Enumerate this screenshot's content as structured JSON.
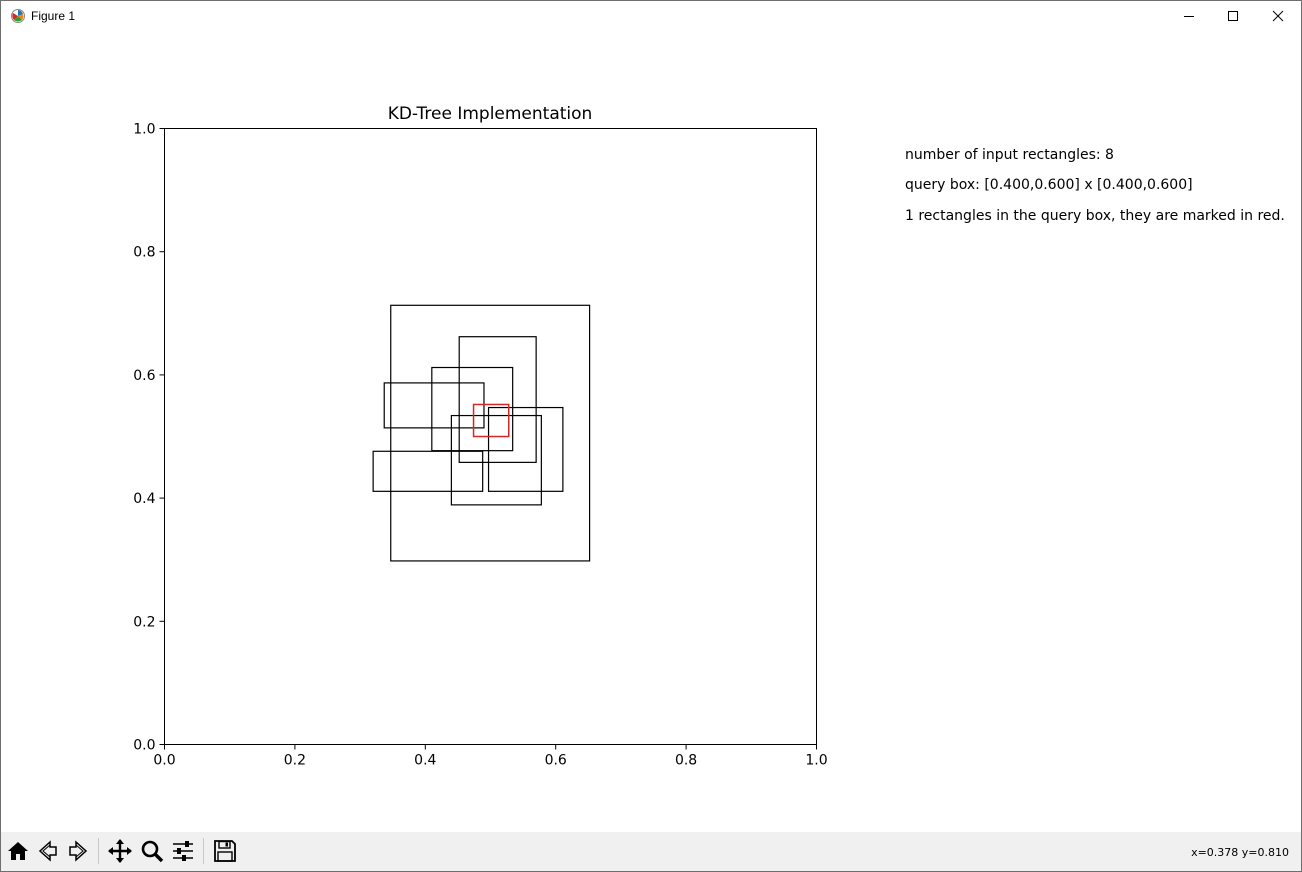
{
  "window": {
    "title": "Figure 1"
  },
  "figure": {
    "info_lines": [
      "number of input rectangles: 8",
      "query box: [0.400,0.600]  x [0.400,0.600]",
      "1 rectangles in the query box, they are marked in red."
    ]
  },
  "chart_data": {
    "type": "rectangles",
    "title": "KD-Tree Implementation",
    "xlabel": "",
    "ylabel": "",
    "xlim": [
      0.0,
      1.0
    ],
    "ylim": [
      0.0,
      1.0
    ],
    "xticks": [
      "0.0",
      "0.2",
      "0.4",
      "0.6",
      "0.8",
      "1.0"
    ],
    "yticks": [
      "0.0",
      "0.2",
      "0.4",
      "0.6",
      "0.8",
      "1.0"
    ],
    "grid": false,
    "rectangles": [
      {
        "x0": 0.347,
        "x1": 0.652,
        "y0": 0.298,
        "y1": 0.713,
        "color": "#000000"
      },
      {
        "x0": 0.452,
        "x1": 0.57,
        "y0": 0.458,
        "y1": 0.662,
        "color": "#000000"
      },
      {
        "x0": 0.41,
        "x1": 0.534,
        "y0": 0.477,
        "y1": 0.612,
        "color": "#000000"
      },
      {
        "x0": 0.337,
        "x1": 0.49,
        "y0": 0.514,
        "y1": 0.587,
        "color": "#000000"
      },
      {
        "x0": 0.32,
        "x1": 0.488,
        "y0": 0.411,
        "y1": 0.476,
        "color": "#000000"
      },
      {
        "x0": 0.44,
        "x1": 0.578,
        "y0": 0.389,
        "y1": 0.534,
        "color": "#000000"
      },
      {
        "x0": 0.497,
        "x1": 0.611,
        "y0": 0.411,
        "y1": 0.547,
        "color": "#000000"
      },
      {
        "x0": 0.474,
        "x1": 0.528,
        "y0": 0.5,
        "y1": 0.552,
        "color": "#d62728"
      }
    ]
  },
  "toolbar": {
    "buttons": [
      "home-icon",
      "back-icon",
      "forward-icon",
      "pan-icon",
      "zoom-icon",
      "configure-subplots-icon",
      "save-icon"
    ],
    "coords_text": "x=0.378 y=0.810"
  }
}
